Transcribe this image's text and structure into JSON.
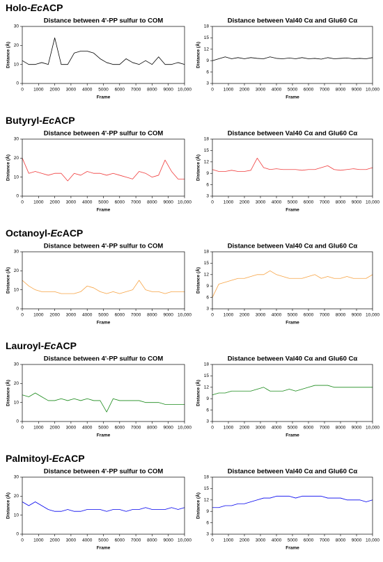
{
  "panels": [
    {
      "prefix": "Holo-",
      "italic": "Ec",
      "suffix": "ACP"
    },
    {
      "prefix": "Butyryl-",
      "italic": "Ec",
      "suffix": "ACP"
    },
    {
      "prefix": "Octanoyl-",
      "italic": "Ec",
      "suffix": "ACP"
    },
    {
      "prefix": "Lauroyl-",
      "italic": "Ec",
      "suffix": "ACP"
    },
    {
      "prefix": "Palmitoyl-",
      "italic": "Ec",
      "suffix": "ACP"
    }
  ],
  "chart_data": [
    {
      "type": "line",
      "title": "Distance between 4'-PP sulfur to COM",
      "xlabel": "Frame",
      "ylabel": "Distance (Å)",
      "xlim": [
        0,
        10000
      ],
      "xticks": [
        0,
        1000,
        2000,
        3000,
        4000,
        5000,
        6000,
        7000,
        8000,
        9000,
        {
          "value": 10000,
          "label": "10,000"
        }
      ],
      "ylim": [
        0,
        30
      ],
      "yticks": [
        0,
        10,
        20,
        30
      ],
      "x": [
        0,
        400,
        800,
        1200,
        1600,
        2000,
        2400,
        2800,
        3200,
        3600,
        4000,
        4400,
        4800,
        5200,
        5600,
        6000,
        6400,
        6800,
        7200,
        7600,
        8000,
        8400,
        8800,
        9200,
        9600,
        10000
      ],
      "series": [
        {
          "color": "#000000",
          "values": [
            12,
            10,
            10,
            11,
            10,
            24,
            10,
            10,
            16,
            17,
            17,
            16,
            13,
            11,
            10,
            10,
            13,
            11,
            10,
            12,
            10,
            14,
            10,
            10,
            11,
            10
          ]
        }
      ]
    },
    {
      "type": "line",
      "title": "Distance between Val40 Cα and Glu60 Cα",
      "xlabel": "Frame",
      "ylabel": "Distance (Å)",
      "xlim": [
        0,
        10000
      ],
      "xticks": [
        0,
        1000,
        2000,
        3000,
        4000,
        5000,
        6000,
        7000,
        8000,
        9000,
        {
          "value": 10000,
          "label": "10,000"
        }
      ],
      "ylim": [
        3,
        18
      ],
      "yticks": [
        3,
        6,
        9,
        12,
        15,
        18
      ],
      "x": [
        0,
        400,
        800,
        1200,
        1600,
        2000,
        2400,
        2800,
        3200,
        3600,
        4000,
        4400,
        4800,
        5200,
        5600,
        6000,
        6400,
        6800,
        7200,
        7600,
        8000,
        8400,
        8800,
        9200,
        9600,
        10000
      ],
      "series": [
        {
          "color": "#000000",
          "values": [
            9,
            9.5,
            10,
            9.5,
            9.8,
            9.5,
            9.8,
            9.6,
            9.5,
            10,
            9.6,
            9.5,
            9.7,
            9.5,
            9.8,
            9.5,
            9.6,
            9.4,
            9.8,
            9.5,
            9.6,
            9.7,
            9.5,
            9.6,
            9.5,
            9.8
          ]
        }
      ]
    },
    {
      "type": "line",
      "title": "Distance between 4'-PP sulfur to COM",
      "xlabel": "Frame",
      "ylabel": "Distance (Å)",
      "xlim": [
        0,
        10000
      ],
      "xticks": [
        0,
        1000,
        2000,
        3000,
        4000,
        5000,
        6000,
        7000,
        8000,
        9000,
        {
          "value": 10000,
          "label": "10,000"
        }
      ],
      "ylim": [
        0,
        30
      ],
      "yticks": [
        0,
        10,
        20,
        30
      ],
      "x": [
        0,
        400,
        800,
        1200,
        1600,
        2000,
        2400,
        2800,
        3200,
        3600,
        4000,
        4400,
        4800,
        5200,
        5600,
        6000,
        6400,
        6800,
        7200,
        7600,
        8000,
        8400,
        8800,
        9200,
        9600,
        10000
      ],
      "series": [
        {
          "color": "#f03c3c",
          "values": [
            20,
            12,
            13,
            12,
            11,
            12,
            12,
            8,
            12,
            11,
            13,
            12,
            12,
            11,
            12,
            11,
            10,
            9,
            13,
            12,
            10,
            11,
            19,
            13,
            9,
            9
          ]
        }
      ]
    },
    {
      "type": "line",
      "title": "Distance between Val40 Cα and Glu60 Cα",
      "xlabel": "Frame",
      "ylabel": "Distance (Å)",
      "xlim": [
        0,
        10000
      ],
      "xticks": [
        0,
        1000,
        2000,
        3000,
        4000,
        5000,
        6000,
        7000,
        8000,
        9000,
        {
          "value": 10000,
          "label": "10,000"
        }
      ],
      "ylim": [
        3,
        18
      ],
      "yticks": [
        3,
        6,
        9,
        12,
        15,
        18
      ],
      "x": [
        0,
        400,
        800,
        1200,
        1600,
        2000,
        2400,
        2800,
        3200,
        3600,
        4000,
        4400,
        4800,
        5200,
        5600,
        6000,
        6400,
        6800,
        7200,
        7600,
        8000,
        8400,
        8800,
        9200,
        9600,
        10000
      ],
      "series": [
        {
          "color": "#f03c3c",
          "values": [
            10,
            9.5,
            9.5,
            9.8,
            9.5,
            9.5,
            9.8,
            13,
            10.5,
            10,
            10.2,
            10,
            10,
            10,
            9.8,
            10,
            10,
            10.5,
            11,
            10,
            9.8,
            10,
            10.2,
            10,
            10,
            10.5
          ]
        }
      ]
    },
    {
      "type": "line",
      "title": "Distance between 4'-PP sulfur to COM",
      "xlabel": "Frame",
      "ylabel": "Distance (Å)",
      "xlim": [
        0,
        10000
      ],
      "xticks": [
        0,
        1000,
        2000,
        3000,
        4000,
        5000,
        6000,
        7000,
        8000,
        9000,
        {
          "value": 10000,
          "label": "10,000"
        }
      ],
      "ylim": [
        0,
        30
      ],
      "yticks": [
        0,
        10,
        20,
        30
      ],
      "x": [
        0,
        400,
        800,
        1200,
        1600,
        2000,
        2400,
        2800,
        3200,
        3600,
        4000,
        4400,
        4800,
        5200,
        5600,
        6000,
        6400,
        6800,
        7200,
        7600,
        8000,
        8400,
        8800,
        9200,
        9600,
        10000
      ],
      "series": [
        {
          "color": "#f7a343",
          "values": [
            15,
            12,
            10,
            9,
            9,
            9,
            8,
            8,
            8,
            9,
            12,
            11,
            9,
            8,
            9,
            8,
            9,
            10,
            15,
            10,
            9,
            9,
            8,
            9,
            9,
            9
          ]
        }
      ]
    },
    {
      "type": "line",
      "title": "Distance between Val40 Cα and Glu60 Cα",
      "xlabel": "Frame",
      "ylabel": "Distance (Å)",
      "xlim": [
        0,
        10000
      ],
      "xticks": [
        0,
        1000,
        2000,
        3000,
        4000,
        5000,
        6000,
        7000,
        8000,
        9000,
        {
          "value": 10000,
          "label": "10,000"
        }
      ],
      "ylim": [
        3,
        18
      ],
      "yticks": [
        3,
        6,
        9,
        12,
        15,
        18
      ],
      "x": [
        0,
        400,
        800,
        1200,
        1600,
        2000,
        2400,
        2800,
        3200,
        3600,
        4000,
        4400,
        4800,
        5200,
        5600,
        6000,
        6400,
        6800,
        7200,
        7600,
        8000,
        8400,
        8800,
        9200,
        9600,
        10000
      ],
      "series": [
        {
          "color": "#f7a343",
          "values": [
            6,
            9.5,
            10,
            10.5,
            11,
            11,
            11.5,
            12,
            12,
            13,
            12,
            11.5,
            11,
            11,
            11,
            11.5,
            12,
            11,
            11.5,
            11,
            11,
            11.5,
            11,
            11,
            11,
            12
          ]
        }
      ]
    },
    {
      "type": "line",
      "title": "Distance between 4'-PP sulfur to COM",
      "xlabel": "Frame",
      "ylabel": "Distance (Å)",
      "xlim": [
        0,
        10000
      ],
      "xticks": [
        0,
        1000,
        2000,
        3000,
        4000,
        5000,
        6000,
        7000,
        8000,
        9000,
        {
          "value": 10000,
          "label": "10,000"
        }
      ],
      "ylim": [
        0,
        30
      ],
      "yticks": [
        0,
        10,
        20,
        30
      ],
      "x": [
        0,
        400,
        800,
        1200,
        1600,
        2000,
        2400,
        2800,
        3200,
        3600,
        4000,
        4400,
        4800,
        5200,
        5600,
        6000,
        6400,
        6800,
        7200,
        7600,
        8000,
        8400,
        8800,
        9200,
        9600,
        10000
      ],
      "series": [
        {
          "color": "#1a8a1a",
          "values": [
            14,
            13,
            15,
            13,
            11,
            11,
            12,
            11,
            12,
            11,
            12,
            11,
            11,
            5,
            12,
            11,
            11,
            11,
            11,
            10,
            10,
            10,
            9,
            9,
            9,
            9
          ]
        }
      ]
    },
    {
      "type": "line",
      "title": "Distance between Val40 Cα and Glu60 Cα",
      "xlabel": "Frame",
      "ylabel": "Distance (Å)",
      "xlim": [
        0,
        10000
      ],
      "xticks": [
        0,
        1000,
        2000,
        3000,
        4000,
        5000,
        6000,
        7000,
        8000,
        9000,
        {
          "value": 10000,
          "label": "10,000"
        }
      ],
      "ylim": [
        3,
        18
      ],
      "yticks": [
        3,
        6,
        9,
        12,
        15,
        18
      ],
      "x": [
        0,
        400,
        800,
        1200,
        1600,
        2000,
        2400,
        2800,
        3200,
        3600,
        4000,
        4400,
        4800,
        5200,
        5600,
        6000,
        6400,
        6800,
        7200,
        7600,
        8000,
        8400,
        8800,
        9200,
        9600,
        10000
      ],
      "series": [
        {
          "color": "#1a8a1a",
          "values": [
            10,
            10.5,
            10.5,
            11,
            11,
            11,
            11,
            11.5,
            12,
            11,
            11,
            11,
            11.5,
            11,
            11.5,
            12,
            12.5,
            12.5,
            12.5,
            12,
            12,
            12,
            12,
            12,
            12,
            12
          ]
        }
      ]
    },
    {
      "type": "line",
      "title": "Distance between 4'-PP sulfur to COM",
      "xlabel": "Frame",
      "ylabel": "Distance (Å)",
      "xlim": [
        0,
        10000
      ],
      "xticks": [
        0,
        1000,
        2000,
        3000,
        4000,
        5000,
        6000,
        7000,
        8000,
        9000,
        {
          "value": 10000,
          "label": "10,000"
        }
      ],
      "ylim": [
        0,
        30
      ],
      "yticks": [
        0,
        10,
        20,
        30
      ],
      "x": [
        0,
        400,
        800,
        1200,
        1600,
        2000,
        2400,
        2800,
        3200,
        3600,
        4000,
        4400,
        4800,
        5200,
        5600,
        6000,
        6400,
        6800,
        7200,
        7600,
        8000,
        8400,
        8800,
        9200,
        9600,
        10000
      ],
      "series": [
        {
          "color": "#0000ee",
          "values": [
            17,
            15,
            17,
            15,
            13,
            12,
            12,
            13,
            12,
            12,
            13,
            13,
            13,
            12,
            13,
            13,
            12,
            13,
            13,
            14,
            13,
            13,
            13,
            14,
            13,
            14
          ]
        }
      ]
    },
    {
      "type": "line",
      "title": "Distance between Val40 Cα and Glu60 Cα",
      "xlabel": "Frame",
      "ylabel": "Distance (Å)",
      "xlim": [
        0,
        10000
      ],
      "xticks": [
        0,
        1000,
        2000,
        3000,
        4000,
        5000,
        6000,
        7000,
        8000,
        9000,
        {
          "value": 10000,
          "label": "10,000"
        }
      ],
      "ylim": [
        3,
        18
      ],
      "yticks": [
        3,
        6,
        9,
        12,
        15,
        18
      ],
      "x": [
        0,
        400,
        800,
        1200,
        1600,
        2000,
        2400,
        2800,
        3200,
        3600,
        4000,
        4400,
        4800,
        5200,
        5600,
        6000,
        6400,
        6800,
        7200,
        7600,
        8000,
        8400,
        8800,
        9200,
        9600,
        10000
      ],
      "series": [
        {
          "color": "#0000ee",
          "values": [
            10,
            10,
            10.5,
            10.5,
            11,
            11,
            11.5,
            12,
            12.5,
            12.5,
            13,
            13,
            13,
            12.5,
            13,
            13,
            13,
            13,
            12.5,
            12.5,
            12.5,
            12,
            12,
            12,
            11.5,
            12
          ]
        }
      ]
    }
  ]
}
